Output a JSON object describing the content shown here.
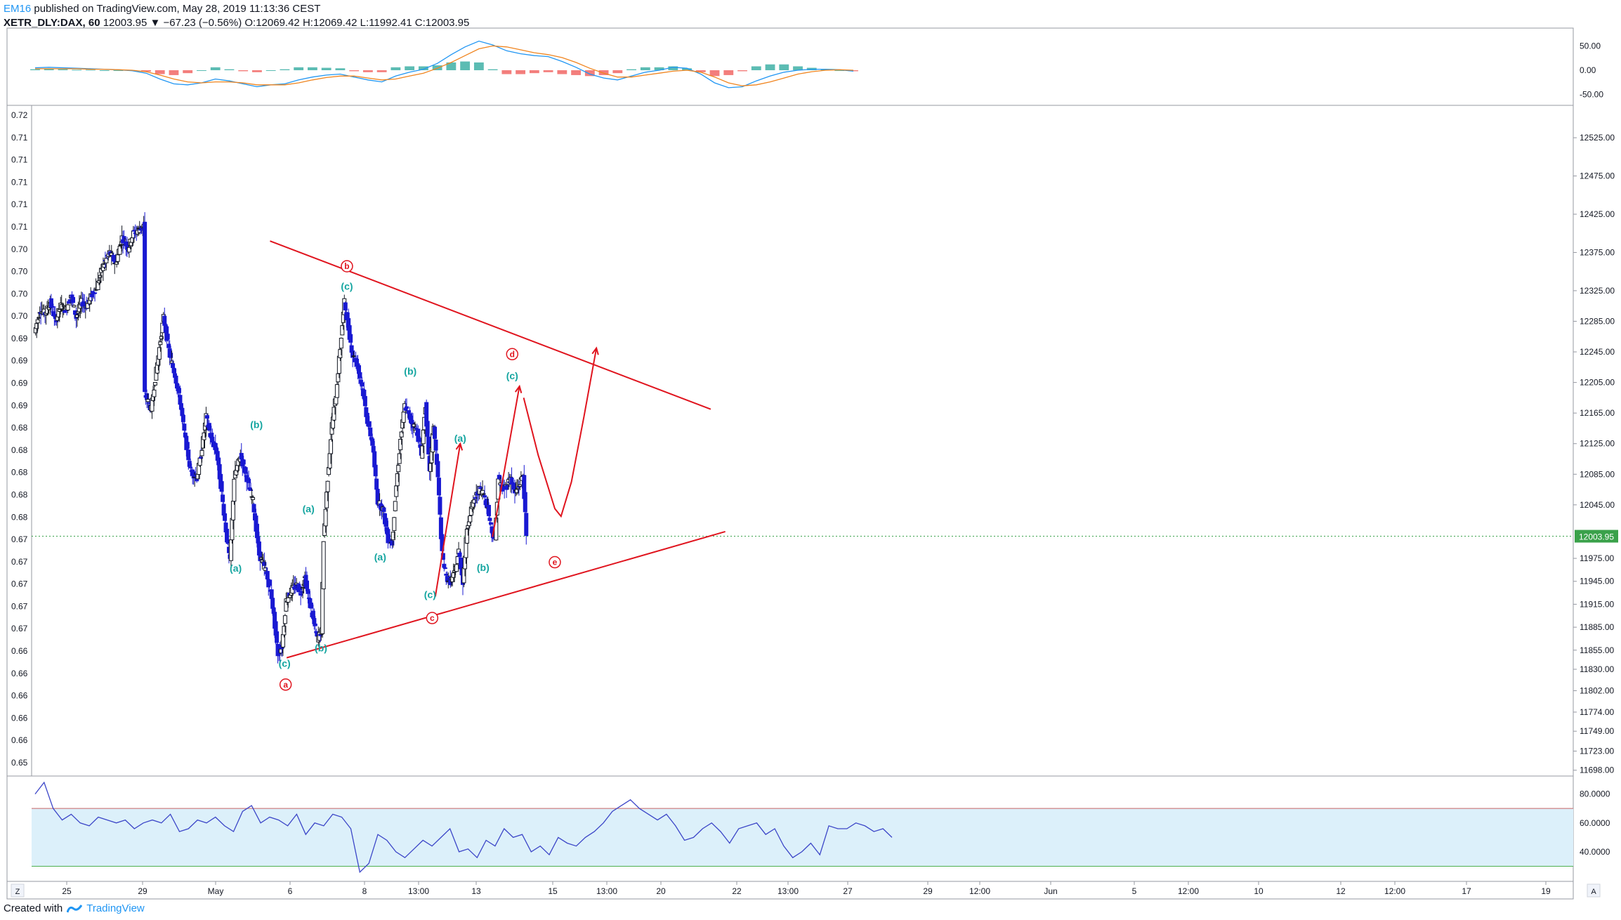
{
  "header": {
    "author": "EM16",
    "published": "published on TradingView.com, May 28, 2019 11:13:36 CEST",
    "symbol": "XETR_DLY:DAX, 60",
    "ohlc": "12003.95 ▼ −67.23 (−0.56%) O:12069.42 H:12069.42 L:11992.41 C:12003.95"
  },
  "footer": {
    "created_with": "Created with",
    "brand": "TradingView"
  },
  "colors": {
    "up": "#131722",
    "down": "#1919d2",
    "wave_red": "#e0141e",
    "wave_teal": "#14a5a0",
    "macd_line": "#2196f3",
    "signal_line": "#f0841e",
    "rsi_line": "#3c46c8",
    "rsi_band": "#dcf0fa",
    "last_price_bg": "#3aa14a"
  },
  "chart_data": [
    {
      "type": "candlestick",
      "title": "XETR_DLY:DAX, 60",
      "ylim": [
        11695,
        12560
      ],
      "y_ticks": [
        "12525.00",
        "12475.00",
        "12425.00",
        "12375.00",
        "12325.00",
        "12285.00",
        "12245.00",
        "12205.00",
        "12165.00",
        "12125.00",
        "12085.00",
        "12045.00",
        "12003.95",
        "11975.00",
        "11945.00",
        "11915.00",
        "11885.00",
        "11855.00",
        "11830.00",
        "11802.00",
        "11774.00",
        "11749.00",
        "11723.00",
        "11698.00"
      ],
      "left_ticks": [
        "0.72",
        "0.71",
        "0.71",
        "0.71",
        "0.71",
        "0.71",
        "0.70",
        "0.70",
        "0.70",
        "0.70",
        "0.69",
        "0.69",
        "0.69",
        "0.69",
        "0.68",
        "0.68",
        "0.68",
        "0.68",
        "0.68",
        "0.67",
        "0.67",
        "0.67",
        "0.67",
        "0.67",
        "0.66",
        "0.66",
        "0.66",
        "0.66",
        "0.66",
        "0.65"
      ],
      "x_ticks": [
        "25",
        "29",
        "May",
        "6",
        "8",
        "13:00",
        "13",
        "15",
        "13:00",
        "20",
        "22",
        "13:00",
        "27",
        "29",
        "12:00",
        "Jun",
        "5",
        "12:00",
        "10",
        "12",
        "12:00",
        "17",
        "19"
      ],
      "last_price": "12003.95",
      "price_path": [
        [
          0,
          12270
        ],
        [
          5,
          12300
        ],
        [
          10,
          12295
        ],
        [
          15,
          12310
        ],
        [
          20,
          12285
        ],
        [
          25,
          12305
        ],
        [
          30,
          12300
        ],
        [
          35,
          12320
        ],
        [
          40,
          12290
        ],
        [
          45,
          12310
        ],
        [
          50,
          12305
        ],
        [
          55,
          12320
        ],
        [
          60,
          12330
        ],
        [
          65,
          12355
        ],
        [
          72,
          12375
        ],
        [
          78,
          12360
        ],
        [
          84,
          12395
        ],
        [
          90,
          12380
        ],
        [
          95,
          12400
        ],
        [
          100,
          12405
        ],
        [
          105,
          12410
        ],
        [
          106,
          12190
        ],
        [
          112,
          12170
        ],
        [
          118,
          12230
        ],
        [
          124,
          12290
        ],
        [
          130,
          12240
        ],
        [
          135,
          12215
        ],
        [
          140,
          12180
        ],
        [
          145,
          12130
        ],
        [
          150,
          12090
        ],
        [
          156,
          12080
        ],
        [
          160,
          12110
        ],
        [
          165,
          12160
        ],
        [
          170,
          12130
        ],
        [
          175,
          12115
        ],
        [
          180,
          12060
        ],
        [
          185,
          12000
        ],
        [
          188,
          11970
        ],
        [
          192,
          12080
        ],
        [
          198,
          12110
        ],
        [
          204,
          12080
        ],
        [
          210,
          12050
        ],
        [
          216,
          11980
        ],
        [
          222,
          11960
        ],
        [
          228,
          11925
        ],
        [
          234,
          11850
        ],
        [
          238,
          11860
        ],
        [
          242,
          11920
        ],
        [
          248,
          11935
        ],
        [
          252,
          11940
        ],
        [
          256,
          11930
        ],
        [
          260,
          11950
        ],
        [
          264,
          11920
        ],
        [
          268,
          11895
        ],
        [
          272,
          11870
        ],
        [
          276,
          11880
        ],
        [
          278,
          12000
        ],
        [
          282,
          12080
        ],
        [
          286,
          12150
        ],
        [
          290,
          12190
        ],
        [
          294,
          12250
        ],
        [
          298,
          12310
        ],
        [
          302,
          12275
        ],
        [
          306,
          12240
        ],
        [
          310,
          12230
        ],
        [
          315,
          12200
        ],
        [
          320,
          12155
        ],
        [
          325,
          12125
        ],
        [
          330,
          12050
        ],
        [
          335,
          12040
        ],
        [
          340,
          12000
        ],
        [
          344,
          11995
        ],
        [
          348,
          12070
        ],
        [
          352,
          12130
        ],
        [
          356,
          12175
        ],
        [
          362,
          12155
        ],
        [
          368,
          12140
        ],
        [
          372,
          12110
        ],
        [
          376,
          12175
        ],
        [
          380,
          12085
        ],
        [
          384,
          12150
        ],
        [
          388,
          12080
        ],
        [
          392,
          11980
        ],
        [
          396,
          11950
        ],
        [
          400,
          11945
        ],
        [
          404,
          11955
        ],
        [
          408,
          11985
        ],
        [
          412,
          11945
        ],
        [
          416,
          12015
        ],
        [
          420,
          12040
        ],
        [
          424,
          12055
        ],
        [
          428,
          12065
        ],
        [
          432,
          12060
        ],
        [
          436,
          12040
        ],
        [
          440,
          12010
        ],
        [
          443,
          12000
        ],
        [
          446,
          12080
        ],
        [
          450,
          12065
        ],
        [
          454,
          12070
        ],
        [
          458,
          12080
        ],
        [
          462,
          12060
        ],
        [
          466,
          12070
        ],
        [
          470,
          12085
        ],
        [
          473,
          12003.95
        ]
      ],
      "waves": [
        {
          "label": "(a)",
          "x": 193,
          "price": 11962,
          "kind": "teal"
        },
        {
          "label": "(b)",
          "x": 213,
          "price": 12150,
          "kind": "teal"
        },
        {
          "label": "(c)",
          "x": 240,
          "price": 11838,
          "kind": "teal"
        },
        {
          "label": "a",
          "x": 241,
          "price": 11810,
          "kind": "red"
        },
        {
          "label": "(a)",
          "x": 263,
          "price": 12040,
          "kind": "teal"
        },
        {
          "label": "(b)",
          "x": 275,
          "price": 11858,
          "kind": "teal"
        },
        {
          "label": "b",
          "x": 300,
          "price": 12357,
          "kind": "red"
        },
        {
          "label": "(c)",
          "x": 300,
          "price": 12331,
          "kind": "teal"
        },
        {
          "label": "(a)",
          "x": 332,
          "price": 11977,
          "kind": "teal"
        },
        {
          "label": "(b)",
          "x": 361,
          "price": 12220,
          "kind": "teal"
        },
        {
          "label": "(c)",
          "x": 380,
          "price": 11928,
          "kind": "teal"
        },
        {
          "label": "c",
          "x": 382,
          "price": 11897,
          "kind": "red"
        },
        {
          "label": "(a)",
          "x": 409,
          "price": 12132,
          "kind": "teal"
        },
        {
          "label": "(b)",
          "x": 431,
          "price": 11963,
          "kind": "teal"
        },
        {
          "label": "d",
          "x": 459,
          "price": 12242,
          "kind": "red"
        },
        {
          "label": "(c)",
          "x": 459,
          "price": 12214,
          "kind": "teal"
        },
        {
          "label": "e",
          "x": 500,
          "price": 11970,
          "kind": "red"
        }
      ]
    },
    {
      "type": "line",
      "title": "MACD",
      "y_ticks": [
        "50.00",
        "0.00",
        "-50.00"
      ],
      "ylim": [
        -65,
        65
      ],
      "series": [
        {
          "name": "macd",
          "values": [
            5,
            6,
            5,
            4,
            3,
            2,
            1,
            -1,
            -6,
            -18,
            -28,
            -30,
            -26,
            -18,
            -22,
            -28,
            -34,
            -30,
            -28,
            -20,
            -14,
            -10,
            -8,
            -14,
            -20,
            -24,
            -12,
            -4,
            2,
            14,
            32,
            48,
            60,
            52,
            40,
            34,
            30,
            28,
            18,
            6,
            -8,
            -16,
            -20,
            -12,
            -4,
            0,
            6,
            4,
            -8,
            -26,
            -36,
            -34,
            -22,
            -12,
            -4,
            0,
            2,
            2,
            1,
            -2
          ]
        },
        {
          "name": "signal",
          "values": [
            3,
            3,
            3,
            3,
            2,
            2,
            1,
            0,
            -3,
            -10,
            -18,
            -24,
            -26,
            -24,
            -24,
            -26,
            -30,
            -30,
            -30,
            -26,
            -20,
            -15,
            -12,
            -12,
            -16,
            -20,
            -18,
            -12,
            -6,
            4,
            16,
            30,
            44,
            50,
            48,
            42,
            36,
            32,
            26,
            16,
            4,
            -6,
            -14,
            -14,
            -10,
            -6,
            -2,
            0,
            -4,
            -14,
            -26,
            -32,
            -30,
            -24,
            -16,
            -8,
            -3,
            0,
            1,
            0
          ]
        },
        {
          "name": "hist",
          "values": [
            2,
            3,
            2,
            1,
            1,
            0,
            0,
            -1,
            -3,
            -8,
            -10,
            -6,
            0,
            6,
            2,
            -2,
            -4,
            0,
            2,
            6,
            6,
            5,
            4,
            -2,
            -4,
            -4,
            6,
            8,
            8,
            10,
            16,
            18,
            16,
            2,
            -8,
            -8,
            -6,
            -4,
            -8,
            -10,
            -12,
            -10,
            -6,
            2,
            6,
            6,
            8,
            4,
            -4,
            -12,
            -10,
            -2,
            8,
            12,
            12,
            8,
            5,
            2,
            0,
            -2
          ]
        }
      ]
    },
    {
      "type": "line",
      "title": "RSI",
      "y_ticks": [
        "80.0000",
        "60.0000",
        "40.0000"
      ],
      "ylim": [
        22,
        90
      ],
      "band": [
        30,
        70
      ],
      "series": [
        {
          "name": "rsi",
          "values": [
            80,
            88,
            70,
            62,
            66,
            60,
            58,
            64,
            62,
            60,
            62,
            56,
            60,
            62,
            60,
            66,
            54,
            56,
            62,
            60,
            64,
            58,
            54,
            68,
            72,
            60,
            64,
            62,
            58,
            66,
            52,
            60,
            58,
            66,
            64,
            56,
            26,
            32,
            52,
            48,
            40,
            36,
            42,
            48,
            44,
            50,
            56,
            40,
            42,
            36,
            48,
            44,
            56,
            50,
            52,
            40,
            44,
            38,
            50,
            46,
            44,
            50,
            54,
            60,
            68,
            72,
            76,
            70,
            66,
            62,
            66,
            58,
            48,
            50,
            56,
            60,
            54,
            46,
            56,
            58,
            60,
            52,
            56,
            44,
            36,
            40,
            46,
            38,
            58,
            56,
            56,
            60,
            58,
            54,
            56,
            50
          ]
        }
      ]
    }
  ]
}
